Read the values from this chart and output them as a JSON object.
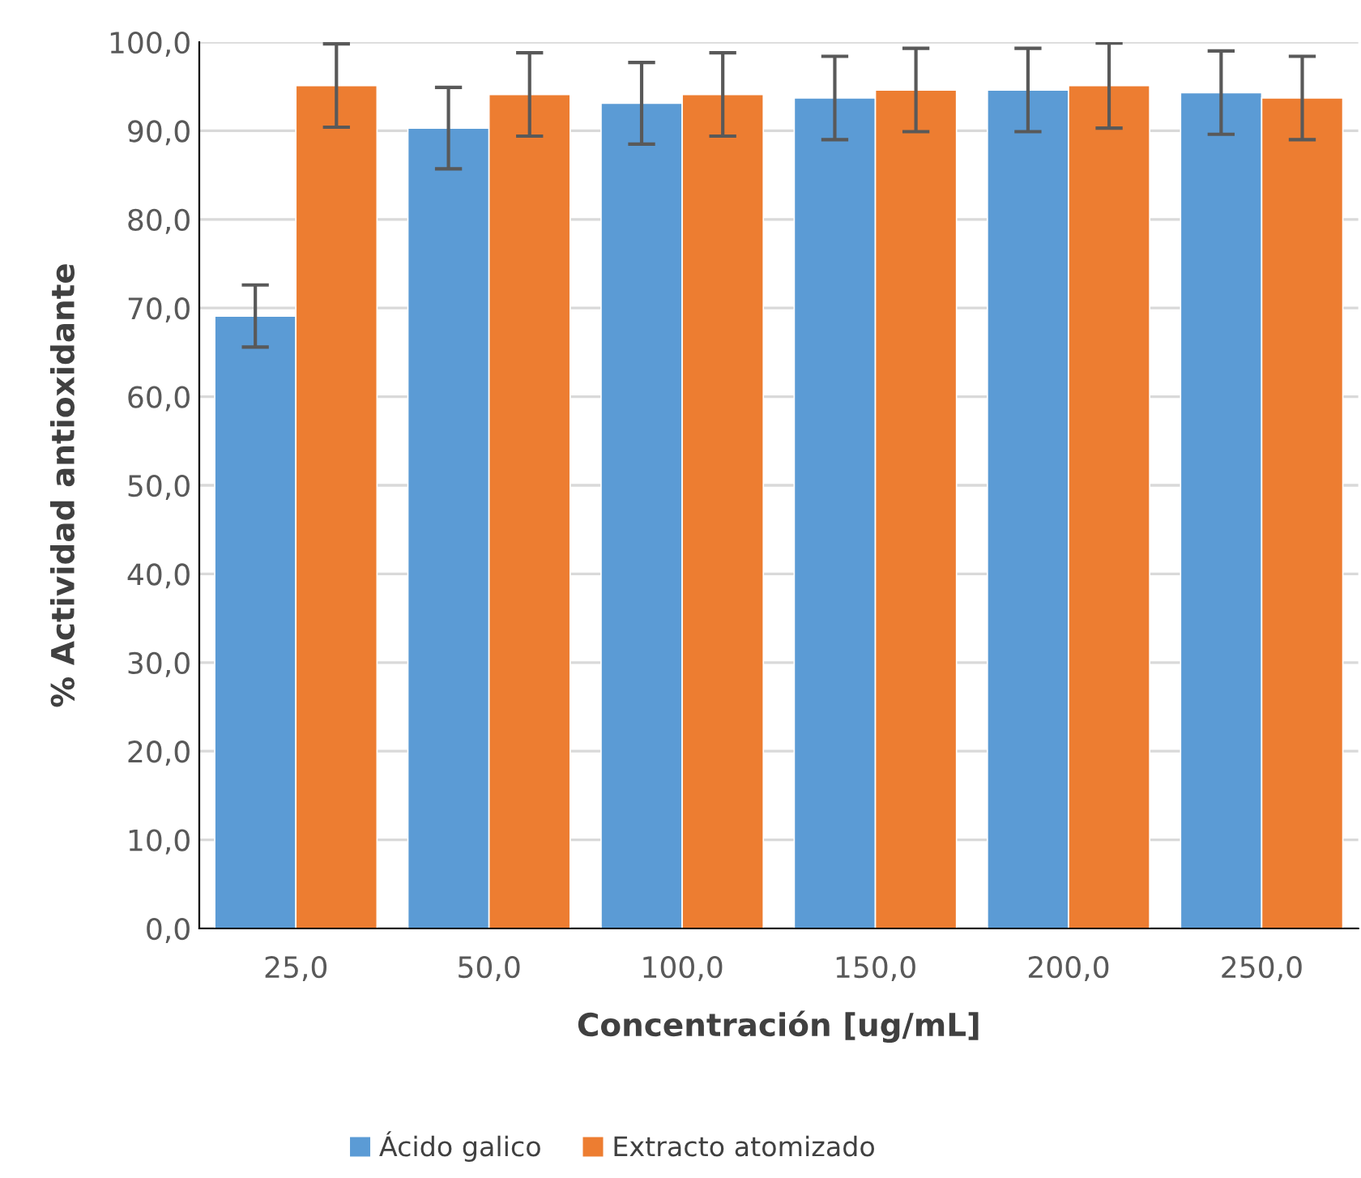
{
  "chart_data": {
    "type": "bar",
    "xlabel": "Concentración [ug/mL]",
    "ylabel": "% Actividad antioxidante",
    "categories": [
      "25,0",
      "50,0",
      "100,0",
      "150,0",
      "200,0",
      "250,0"
    ],
    "series": [
      {
        "name": "Ácido galico",
        "color": "#5b9bd5",
        "values": [
          69.1,
          90.3,
          93.1,
          93.7,
          94.6,
          94.3
        ],
        "errors": [
          3.5,
          4.6,
          4.6,
          4.7,
          4.7,
          4.7
        ]
      },
      {
        "name": "Extracto atomizado",
        "color": "#ed7d31",
        "values": [
          95.1,
          94.1,
          94.1,
          94.6,
          95.1,
          93.7
        ],
        "errors": [
          4.7,
          4.7,
          4.7,
          4.7,
          4.8,
          4.7
        ]
      }
    ],
    "ylim": [
      0,
      100
    ],
    "yticks": [
      {
        "value": 0,
        "label": "0,0"
      },
      {
        "value": 10,
        "label": "10,0"
      },
      {
        "value": 20,
        "label": "20,0"
      },
      {
        "value": 30,
        "label": "30,0"
      },
      {
        "value": 40,
        "label": "40,0"
      },
      {
        "value": 50,
        "label": "50,0"
      },
      {
        "value": 60,
        "label": "60,0"
      },
      {
        "value": 70,
        "label": "70,0"
      },
      {
        "value": 80,
        "label": "80,0"
      },
      {
        "value": 90,
        "label": "90,0"
      },
      {
        "value": 100,
        "label": "100,0"
      }
    ],
    "grid": "y",
    "legend": "bottom"
  }
}
